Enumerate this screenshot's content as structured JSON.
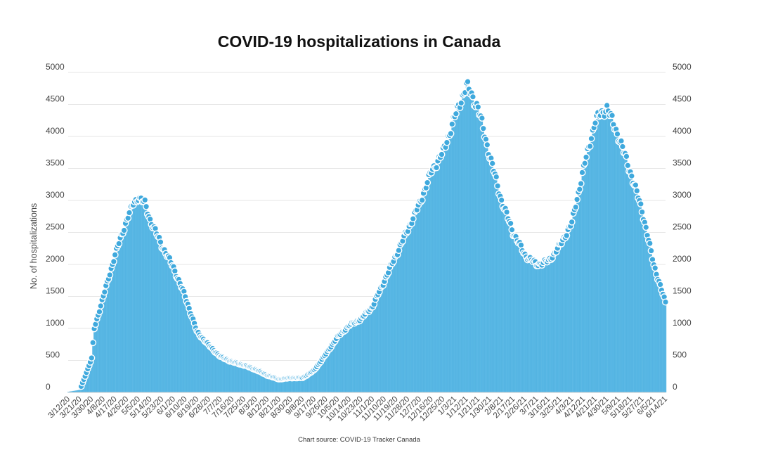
{
  "colors": {
    "area": "#5ab8e5",
    "bar_line": "#41a8dc",
    "marker": "#3fa9dd",
    "marker_edge": "#ffffff",
    "grid": "#e6e6e6"
  },
  "chart_data": {
    "type": "area",
    "title": "COVID-19 hospitalizations in Canada",
    "ylabel": "No. of hospitalizations",
    "source": "Chart source: COVID-19 Tracker Canada",
    "ylim": [
      0,
      5000
    ],
    "yticks": [
      0,
      500,
      1000,
      1500,
      2000,
      2500,
      3000,
      3500,
      4000,
      4500,
      5000
    ],
    "grid": true,
    "legend": "none",
    "start_date": "3/12/20",
    "end_date": "6/14/21",
    "x_tick_labels": [
      "3/12/20",
      "3/21/20",
      "3/30/20",
      "4/8/20",
      "4/17/20",
      "4/26/20",
      "5/5/20",
      "5/14/20",
      "5/23/20",
      "6/1/20",
      "6/10/20",
      "6/19/20",
      "6/28/20",
      "7/7/20",
      "7/16/20",
      "7/25/20",
      "8/3/20",
      "8/12/20",
      "8/21/20",
      "8/30/20",
      "9/8/20",
      "9/17/20",
      "9/26/20",
      "10/5/20",
      "10/14/20",
      "10/23/20",
      "11/1/20",
      "11/10/20",
      "11/19/20",
      "11/28/20",
      "12/7/20",
      "12/16/20",
      "12/25/20",
      "1/3/21",
      "1/12/21",
      "1/21/21",
      "1/30/21",
      "2/8/21",
      "2/17/21",
      "2/26/21",
      "3/7/21",
      "3/16/21",
      "3/25/21",
      "4/3/21",
      "4/12/21",
      "4/21/21",
      "4/30/21",
      "5/9/21",
      "5/18/21",
      "5/27/21",
      "6/5/21",
      "6/14/21"
    ],
    "series": [
      {
        "points": [
          [
            "3/12/20",
            10
          ],
          [
            "3/21/20",
            40
          ],
          [
            "3/30/20",
            530
          ],
          [
            "4/1/20",
            1000
          ],
          [
            "4/8/20",
            1500
          ],
          [
            "4/17/20",
            2150
          ],
          [
            "4/26/20",
            2700
          ],
          [
            "5/1/20",
            2950
          ],
          [
            "5/5/20",
            3050
          ],
          [
            "5/10/20",
            2950
          ],
          [
            "5/14/20",
            2700
          ],
          [
            "5/23/20",
            2300
          ],
          [
            "6/1/20",
            1950
          ],
          [
            "6/10/20",
            1500
          ],
          [
            "6/19/20",
            950
          ],
          [
            "6/28/20",
            740
          ],
          [
            "7/7/20",
            560
          ],
          [
            "7/16/20",
            480
          ],
          [
            "7/25/20",
            430
          ],
          [
            "8/3/20",
            360
          ],
          [
            "8/12/20",
            270
          ],
          [
            "8/21/20",
            210
          ],
          [
            "8/30/20",
            230
          ],
          [
            "9/8/20",
            230
          ],
          [
            "9/17/20",
            350
          ],
          [
            "9/26/20",
            600
          ],
          [
            "10/5/20",
            870
          ],
          [
            "10/14/20",
            1050
          ],
          [
            "10/23/20",
            1150
          ],
          [
            "11/1/20",
            1350
          ],
          [
            "11/10/20",
            1750
          ],
          [
            "11/19/20",
            2150
          ],
          [
            "11/28/20",
            2550
          ],
          [
            "12/7/20",
            2950
          ],
          [
            "12/16/20",
            3450
          ],
          [
            "12/25/20",
            3750
          ],
          [
            "1/3/21",
            4300
          ],
          [
            "1/12/21",
            4800
          ],
          [
            "1/21/21",
            4450
          ],
          [
            "1/30/21",
            3700
          ],
          [
            "2/8/21",
            3000
          ],
          [
            "2/17/21",
            2500
          ],
          [
            "2/26/21",
            2150
          ],
          [
            "3/7/21",
            2000
          ],
          [
            "3/16/21",
            2050
          ],
          [
            "3/25/21",
            2300
          ],
          [
            "4/3/21",
            2650
          ],
          [
            "4/12/21",
            3500
          ],
          [
            "4/21/21",
            4250
          ],
          [
            "4/30/21",
            4450
          ],
          [
            "5/9/21",
            4000
          ],
          [
            "5/18/21",
            3450
          ],
          [
            "5/27/21",
            2850
          ],
          [
            "6/5/21",
            2000
          ],
          [
            "6/14/21",
            1400
          ]
        ]
      }
    ]
  }
}
